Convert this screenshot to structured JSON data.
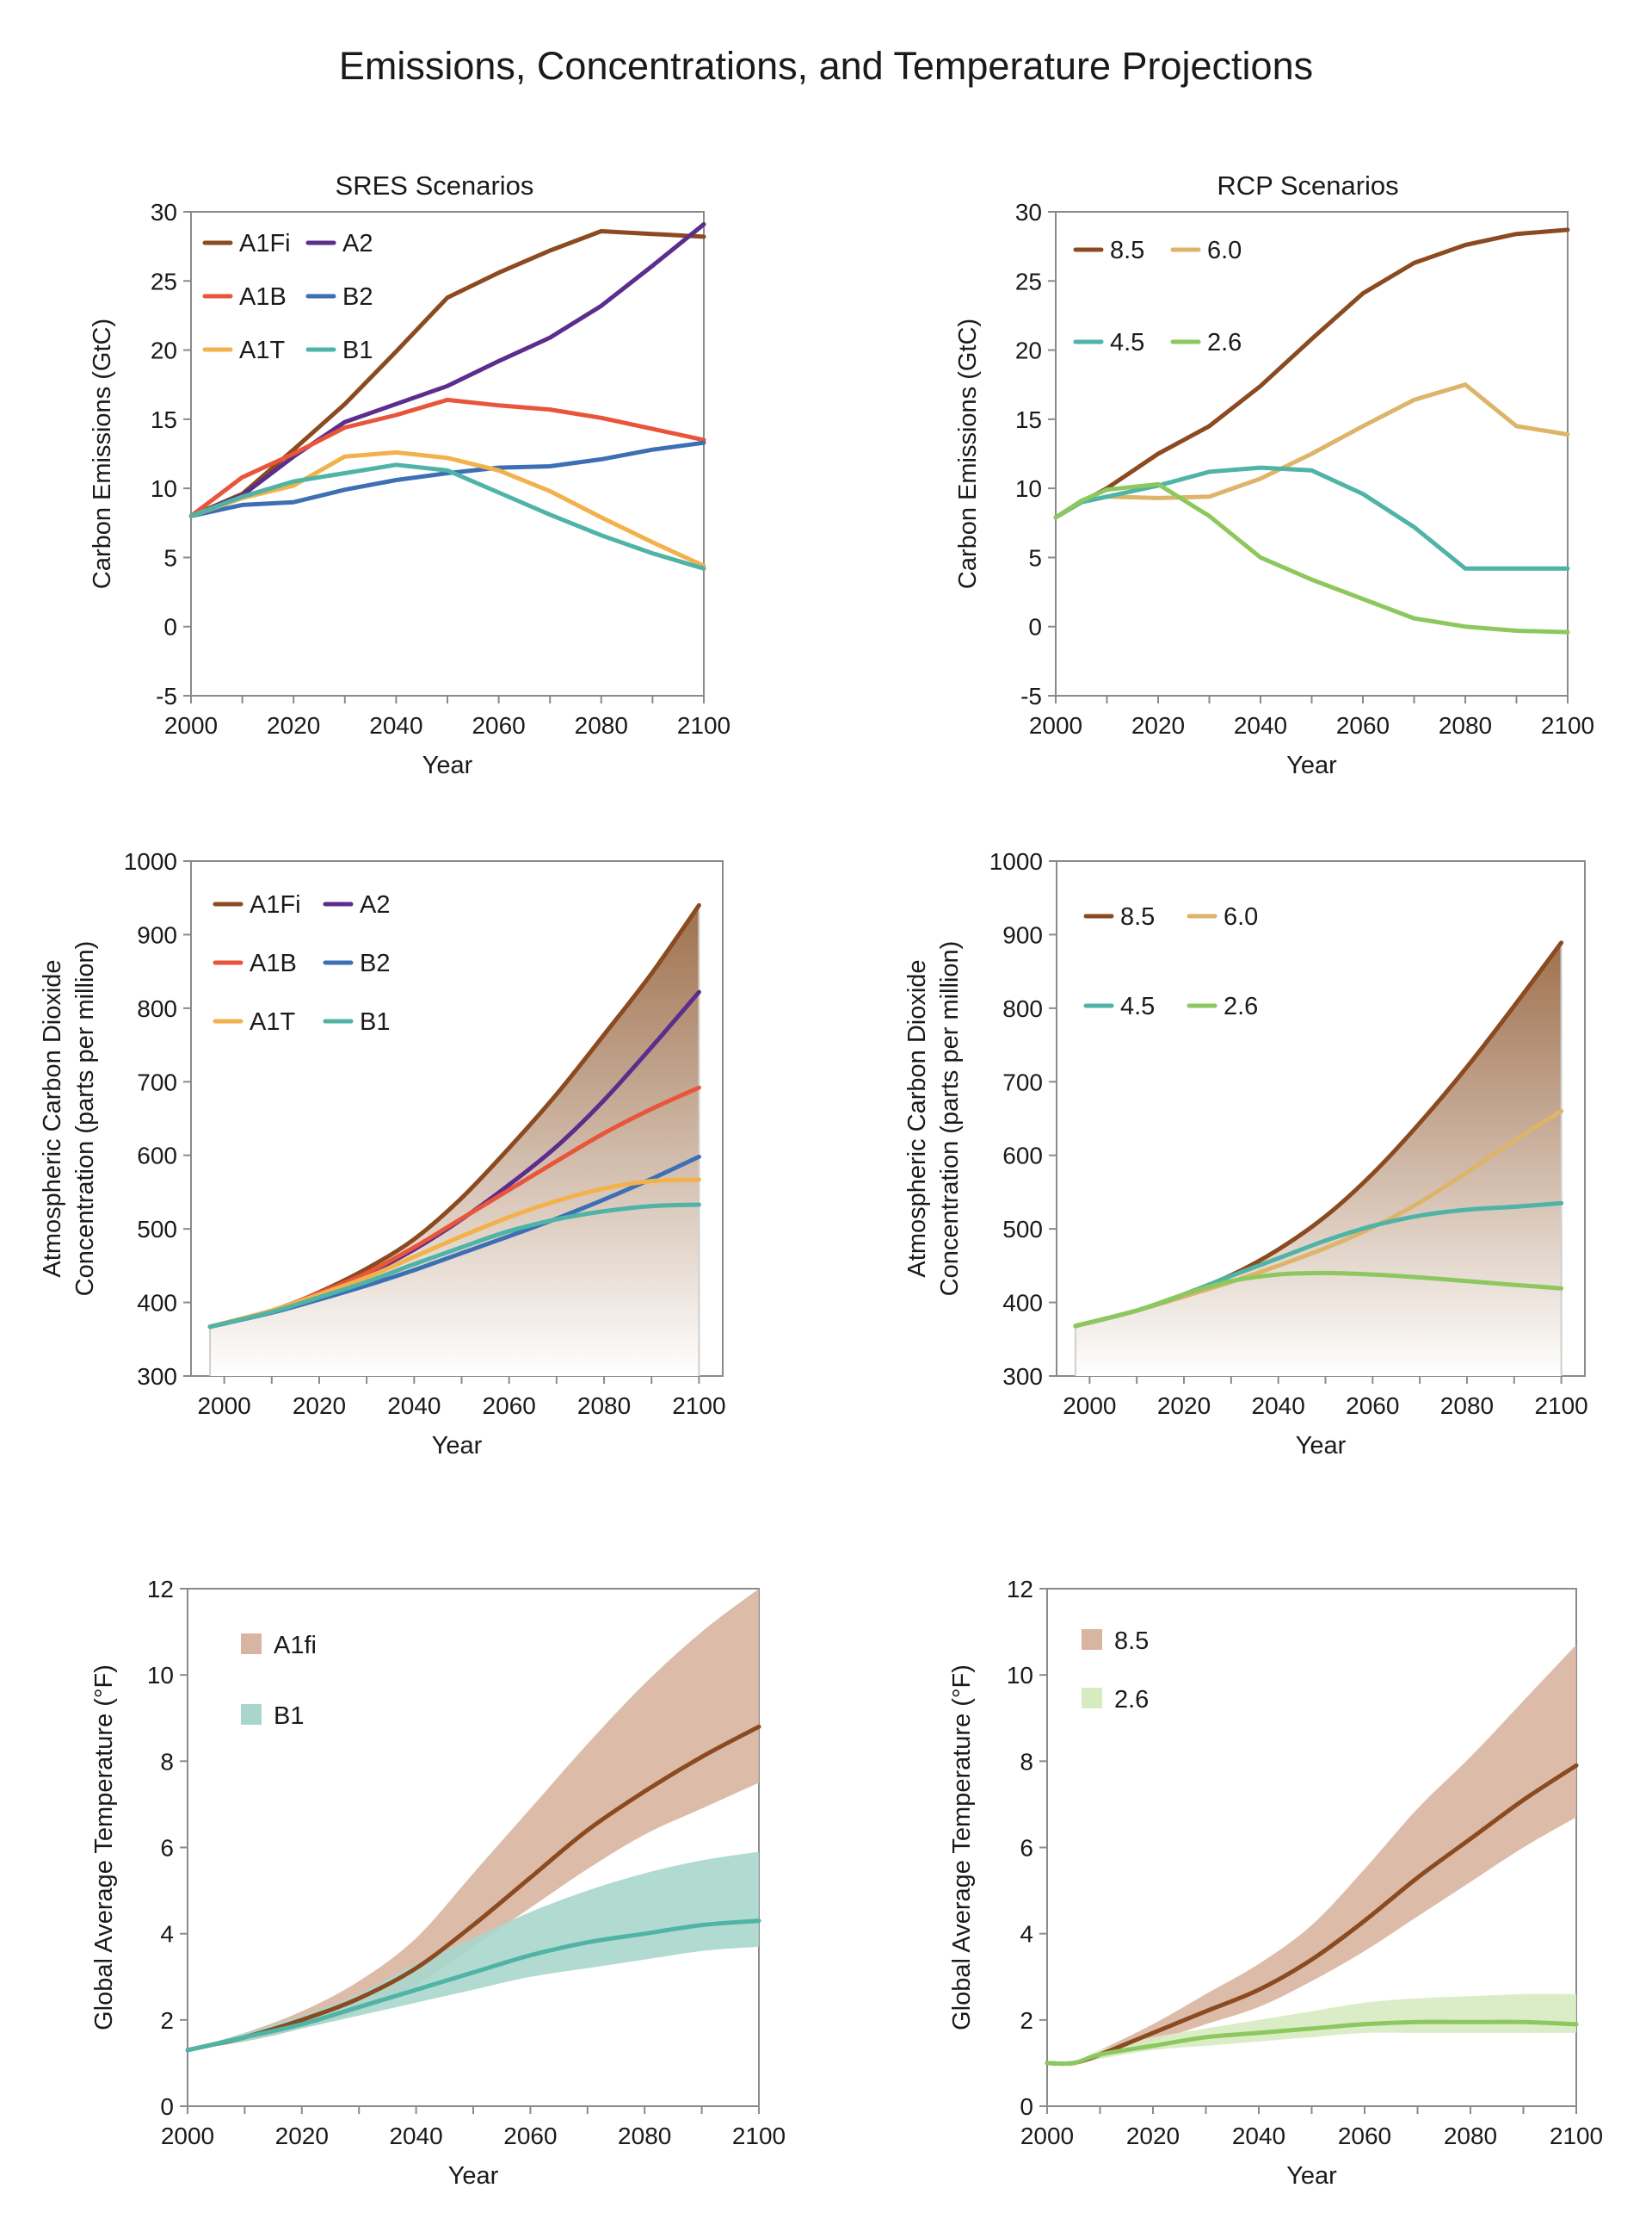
{
  "figure": {
    "title": "Emissions, Concentrations, and Temperature Projections"
  },
  "chart_data": [
    {
      "id": "sres-emissions",
      "type": "line",
      "title": "SRES Scenarios",
      "xlabel": "Year",
      "ylabel": "Carbon Emissions (GtC)",
      "xlim": [
        2000,
        2100
      ],
      "ylim": [
        -5,
        30
      ],
      "xticks": [
        2000,
        2020,
        2040,
        2060,
        2080,
        2100
      ],
      "yticks": [
        -5,
        0,
        5,
        10,
        15,
        20,
        25,
        30
      ],
      "grid": false,
      "legend_position": "top-left",
      "series": [
        {
          "name": "A1Fi",
          "color": "#8b4a1f",
          "x": [
            2000,
            2010,
            2020,
            2030,
            2040,
            2050,
            2060,
            2070,
            2080,
            2090,
            2100
          ],
          "y": [
            8.0,
            9.6,
            12.8,
            16.1,
            19.9,
            23.8,
            25.6,
            27.2,
            28.6,
            28.4,
            28.2
          ]
        },
        {
          "name": "A2",
          "color": "#5b2d8c",
          "x": [
            2000,
            2010,
            2020,
            2030,
            2040,
            2050,
            2060,
            2070,
            2080,
            2090,
            2100
          ],
          "y": [
            8.0,
            9.5,
            12.3,
            14.8,
            16.1,
            17.4,
            19.2,
            20.9,
            23.2,
            26.1,
            29.1
          ]
        },
        {
          "name": "A1B",
          "color": "#e8553a",
          "x": [
            2000,
            2010,
            2020,
            2030,
            2040,
            2050,
            2060,
            2070,
            2080,
            2090,
            2100
          ],
          "y": [
            8.0,
            10.8,
            12.5,
            14.4,
            15.3,
            16.4,
            16.0,
            15.7,
            15.1,
            14.3,
            13.5
          ]
        },
        {
          "name": "B2",
          "color": "#3d6fb5",
          "x": [
            2000,
            2010,
            2020,
            2030,
            2040,
            2050,
            2060,
            2070,
            2080,
            2090,
            2100
          ],
          "y": [
            8.0,
            8.8,
            9.0,
            9.9,
            10.6,
            11.1,
            11.5,
            11.6,
            12.1,
            12.8,
            13.3
          ]
        },
        {
          "name": "A1T",
          "color": "#f2b14a",
          "x": [
            2000,
            2010,
            2020,
            2030,
            2040,
            2050,
            2060,
            2070,
            2080,
            2090,
            2100
          ],
          "y": [
            8.0,
            9.3,
            10.2,
            12.3,
            12.6,
            12.2,
            11.3,
            9.8,
            7.9,
            6.1,
            4.4
          ]
        },
        {
          "name": "B1",
          "color": "#4fb3a6",
          "x": [
            2000,
            2010,
            2020,
            2030,
            2040,
            2050,
            2060,
            2070,
            2080,
            2090,
            2100
          ],
          "y": [
            8.0,
            9.4,
            10.5,
            11.1,
            11.7,
            11.3,
            9.7,
            8.1,
            6.6,
            5.3,
            4.2
          ]
        }
      ]
    },
    {
      "id": "rcp-emissions",
      "type": "line",
      "title": "RCP Scenarios",
      "xlabel": "Year",
      "ylabel": "Carbon Emissions (GtC)",
      "xlim": [
        2000,
        2100
      ],
      "ylim": [
        -5,
        30
      ],
      "xticks": [
        2000,
        2020,
        2040,
        2060,
        2080,
        2100
      ],
      "yticks": [
        -5,
        0,
        5,
        10,
        15,
        20,
        25,
        30
      ],
      "grid": false,
      "legend_position": "top-left",
      "series": [
        {
          "name": "8.5",
          "color": "#8b4a1f",
          "x": [
            2000,
            2005,
            2010,
            2020,
            2030,
            2040,
            2050,
            2060,
            2070,
            2080,
            2090,
            2100
          ],
          "y": [
            7.9,
            9.0,
            10.0,
            12.5,
            14.5,
            17.4,
            20.8,
            24.1,
            26.3,
            27.6,
            28.4,
            28.7
          ]
        },
        {
          "name": "6.0",
          "color": "#ddb46a",
          "x": [
            2000,
            2005,
            2010,
            2020,
            2030,
            2040,
            2050,
            2060,
            2070,
            2080,
            2090,
            2100
          ],
          "y": [
            7.9,
            9.0,
            9.4,
            9.3,
            9.4,
            10.7,
            12.5,
            14.5,
            16.4,
            17.5,
            14.5,
            13.9
          ]
        },
        {
          "name": "4.5",
          "color": "#4fb3a6",
          "x": [
            2000,
            2005,
            2010,
            2020,
            2030,
            2040,
            2050,
            2060,
            2070,
            2080,
            2090,
            2100
          ],
          "y": [
            7.9,
            9.0,
            9.4,
            10.2,
            11.2,
            11.5,
            11.3,
            9.6,
            7.2,
            4.2,
            4.2,
            4.2
          ]
        },
        {
          "name": "2.6",
          "color": "#8cc85e",
          "x": [
            2000,
            2005,
            2010,
            2020,
            2030,
            2040,
            2050,
            2060,
            2070,
            2080,
            2090,
            2100
          ],
          "y": [
            7.9,
            9.1,
            9.9,
            10.3,
            8.0,
            5.0,
            3.4,
            2.0,
            0.6,
            0.0,
            -0.3,
            -0.4
          ]
        }
      ]
    },
    {
      "id": "sres-co2",
      "type": "area",
      "xlabel": "Year",
      "ylabel": "Atmospheric Carbon Dioxide Concentration (parts per million)",
      "ylabel_lines": [
        "Atmospheric Carbon Dioxide",
        "Concentration (parts per million)"
      ],
      "xlim": [
        1993,
        2105
      ],
      "ylim": [
        300,
        1000
      ],
      "xticks": [
        2000,
        2020,
        2040,
        2060,
        2080,
        2100
      ],
      "yticks": [
        300,
        400,
        500,
        600,
        700,
        800,
        900,
        1000
      ],
      "grid": false,
      "legend_position": "top-left",
      "fill_under_series": "A1Fi",
      "fill_colors": [
        "#9a6a45",
        "#ffffff"
      ],
      "series": [
        {
          "name": "A1Fi",
          "color": "#8b4a1f",
          "x": [
            1997,
            2010,
            2020,
            2030,
            2040,
            2050,
            2060,
            2070,
            2080,
            2090,
            2100
          ],
          "y": [
            367,
            388,
            414,
            446,
            486,
            542,
            610,
            683,
            764,
            847,
            940
          ]
        },
        {
          "name": "A2",
          "color": "#5b2d8c",
          "x": [
            1997,
            2010,
            2020,
            2030,
            2040,
            2050,
            2060,
            2070,
            2080,
            2090,
            2100
          ],
          "y": [
            367,
            388,
            411,
            438,
            472,
            513,
            560,
            612,
            675,
            747,
            822
          ]
        },
        {
          "name": "A1B",
          "color": "#e8553a",
          "x": [
            1997,
            2010,
            2020,
            2030,
            2040,
            2050,
            2060,
            2070,
            2080,
            2090,
            2100
          ],
          "y": [
            367,
            389,
            413,
            440,
            475,
            514,
            553,
            592,
            630,
            663,
            692
          ]
        },
        {
          "name": "B2",
          "color": "#3d6fb5",
          "x": [
            1997,
            2010,
            2020,
            2030,
            2040,
            2050,
            2060,
            2070,
            2080,
            2090,
            2100
          ],
          "y": [
            367,
            386,
            404,
            423,
            444,
            467,
            490,
            514,
            540,
            568,
            598
          ]
        },
        {
          "name": "A1T",
          "color": "#f2b14a",
          "x": [
            1997,
            2010,
            2020,
            2030,
            2040,
            2050,
            2060,
            2070,
            2080,
            2090,
            2100
          ],
          "y": [
            367,
            389,
            411,
            434,
            462,
            490,
            516,
            538,
            555,
            565,
            567
          ]
        },
        {
          "name": "B1",
          "color": "#4fb3a6",
          "x": [
            1997,
            2010,
            2020,
            2030,
            2040,
            2050,
            2060,
            2070,
            2080,
            2090,
            2100
          ],
          "y": [
            367,
            387,
            407,
            428,
            452,
            475,
            497,
            513,
            524,
            531,
            533
          ]
        }
      ]
    },
    {
      "id": "rcp-co2",
      "type": "area",
      "xlabel": "Year",
      "ylabel": "Atmospheric Carbon Dioxide Concentration (parts per million)",
      "ylabel_lines": [
        "Atmospheric Carbon Dioxide",
        "Concentration (parts per million)"
      ],
      "xlim": [
        1993,
        2105
      ],
      "ylim": [
        300,
        1000
      ],
      "xticks": [
        2000,
        2020,
        2040,
        2060,
        2080,
        2100
      ],
      "yticks": [
        300,
        400,
        500,
        600,
        700,
        800,
        900,
        1000
      ],
      "grid": false,
      "legend_position": "top-left",
      "fill_under_series": "8.5",
      "fill_colors": [
        "#9a6a45",
        "#ffffff"
      ],
      "series": [
        {
          "name": "8.5",
          "color": "#8b4a1f",
          "x": [
            1997,
            2010,
            2020,
            2030,
            2040,
            2050,
            2060,
            2070,
            2080,
            2090,
            2100
          ],
          "y": [
            368,
            389,
            411,
            437,
            472,
            517,
            575,
            644,
            720,
            803,
            889
          ]
        },
        {
          "name": "6.0",
          "color": "#ddb46a",
          "x": [
            1997,
            2010,
            2020,
            2030,
            2040,
            2050,
            2060,
            2070,
            2080,
            2090,
            2100
          ],
          "y": [
            368,
            389,
            408,
            428,
            450,
            474,
            502,
            536,
            577,
            620,
            660
          ]
        },
        {
          "name": "4.5",
          "color": "#4fb3a6",
          "x": [
            1997,
            2010,
            2020,
            2030,
            2040,
            2050,
            2060,
            2070,
            2080,
            2090,
            2100
          ],
          "y": [
            368,
            389,
            411,
            436,
            460,
            484,
            504,
            518,
            526,
            530,
            535
          ]
        },
        {
          "name": "2.6",
          "color": "#8cc85e",
          "x": [
            1997,
            2010,
            2020,
            2030,
            2040,
            2050,
            2060,
            2070,
            2080,
            2090,
            2100
          ],
          "y": [
            368,
            389,
            411,
            429,
            438,
            440,
            438,
            434,
            429,
            424,
            419
          ]
        }
      ]
    },
    {
      "id": "sres-temperature",
      "type": "area",
      "xlabel": "Year",
      "ylabel": "Global Average Temperature (°F)",
      "xlim": [
        2000,
        2100
      ],
      "ylim": [
        0,
        12
      ],
      "xticks": [
        2000,
        2020,
        2040,
        2060,
        2080,
        2100
      ],
      "yticks": [
        0,
        2,
        4,
        6,
        8,
        10,
        12
      ],
      "grid": false,
      "legend_position": "top-left",
      "series": [
        {
          "name": "A1fi",
          "color": "#8b4a1f",
          "band_color": "#d8b5a0",
          "x": [
            2000,
            2010,
            2020,
            2030,
            2040,
            2050,
            2060,
            2070,
            2080,
            2090,
            2100
          ],
          "y": [
            1.3,
            1.6,
            2.0,
            2.5,
            3.2,
            4.2,
            5.3,
            6.4,
            7.3,
            8.1,
            8.8
          ],
          "lower": [
            1.3,
            1.5,
            1.8,
            2.2,
            2.8,
            3.7,
            4.6,
            5.5,
            6.3,
            6.9,
            7.5
          ],
          "upper": [
            1.3,
            1.7,
            2.2,
            2.9,
            3.9,
            5.4,
            6.9,
            8.4,
            9.8,
            11.0,
            12.0
          ]
        },
        {
          "name": "B1",
          "color": "#4fb3a6",
          "band_color": "#a9d6cc",
          "x": [
            2000,
            2010,
            2020,
            2030,
            2040,
            2050,
            2060,
            2070,
            2080,
            2090,
            2100
          ],
          "y": [
            1.3,
            1.6,
            1.9,
            2.3,
            2.7,
            3.1,
            3.5,
            3.8,
            4.0,
            4.2,
            4.3
          ],
          "lower": [
            1.3,
            1.5,
            1.8,
            2.1,
            2.4,
            2.7,
            3.0,
            3.2,
            3.4,
            3.6,
            3.7
          ],
          "upper": [
            1.3,
            1.7,
            2.1,
            2.6,
            3.3,
            3.9,
            4.5,
            5.0,
            5.4,
            5.7,
            5.9
          ]
        }
      ]
    },
    {
      "id": "rcp-temperature",
      "type": "area",
      "xlabel": "Year",
      "ylabel": "Global Average Temperature (°F)",
      "xlim": [
        2000,
        2100
      ],
      "ylim": [
        0,
        12
      ],
      "xticks": [
        2000,
        2020,
        2040,
        2060,
        2080,
        2100
      ],
      "yticks": [
        0,
        2,
        4,
        6,
        8,
        10,
        12
      ],
      "grid": false,
      "legend_position": "top-left",
      "series": [
        {
          "name": "8.5",
          "color": "#8b4a1f",
          "band_color": "#d8b5a0",
          "x": [
            2000,
            2005,
            2010,
            2020,
            2030,
            2040,
            2050,
            2060,
            2070,
            2080,
            2090,
            2100
          ],
          "y": [
            1.0,
            1.0,
            1.2,
            1.7,
            2.2,
            2.7,
            3.4,
            4.3,
            5.3,
            6.2,
            7.1,
            7.9
          ],
          "lower": [
            1.0,
            1.0,
            1.1,
            1.5,
            1.9,
            2.3,
            2.9,
            3.6,
            4.4,
            5.2,
            6.0,
            6.7
          ],
          "upper": [
            1.0,
            1.0,
            1.3,
            1.9,
            2.6,
            3.3,
            4.2,
            5.5,
            6.9,
            8.1,
            9.4,
            10.7
          ]
        },
        {
          "name": "2.6",
          "color": "#8cc85e",
          "band_color": "#d7ebc1",
          "x": [
            2000,
            2005,
            2010,
            2020,
            2030,
            2040,
            2050,
            2060,
            2070,
            2080,
            2090,
            2100
          ],
          "y": [
            1.0,
            1.0,
            1.2,
            1.4,
            1.6,
            1.7,
            1.8,
            1.9,
            1.95,
            1.95,
            1.95,
            1.9
          ],
          "lower": [
            1.0,
            1.0,
            1.1,
            1.3,
            1.4,
            1.5,
            1.6,
            1.7,
            1.7,
            1.7,
            1.7,
            1.7
          ],
          "upper": [
            1.0,
            1.0,
            1.3,
            1.6,
            1.8,
            2.0,
            2.2,
            2.4,
            2.5,
            2.55,
            2.6,
            2.6
          ]
        }
      ]
    }
  ]
}
